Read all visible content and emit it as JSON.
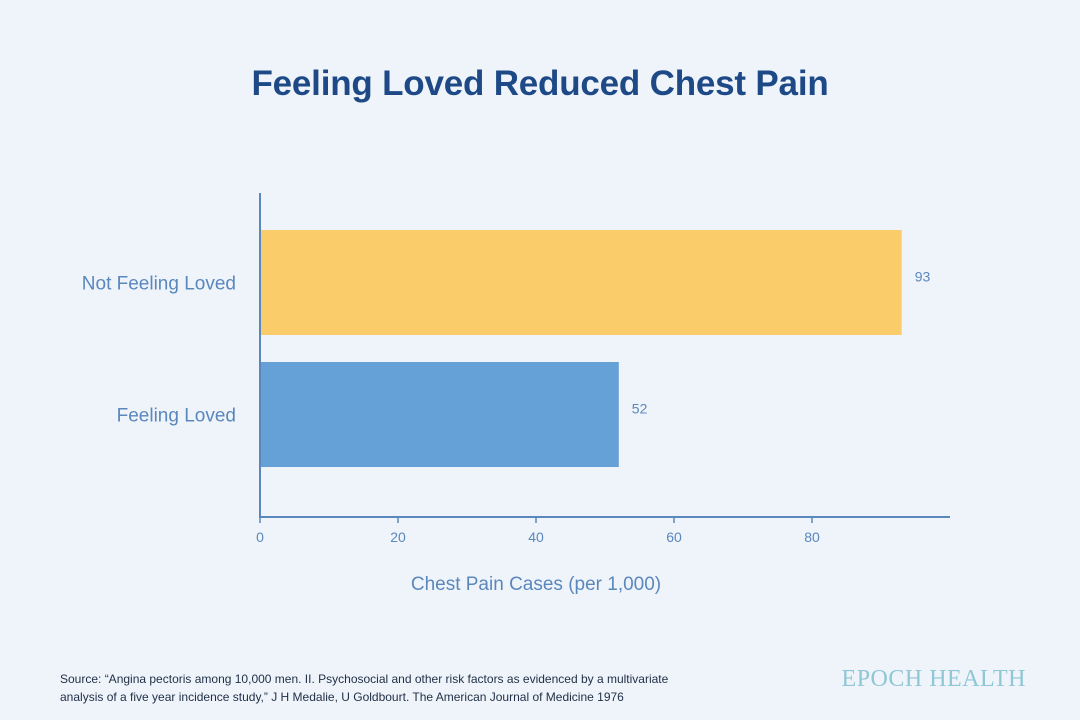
{
  "chart_data": {
    "type": "bar",
    "orientation": "horizontal",
    "title": "Feeling Loved Reduced Chest Pain",
    "categories": [
      "Not Feeling Loved",
      "Feeling Loved"
    ],
    "values": [
      93,
      52
    ],
    "value_labels": [
      "93",
      "52"
    ],
    "colors": [
      "#fbcd6a",
      "#65a1d6"
    ],
    "xlabel": "Chest Pain Cases (per 1,000)",
    "ylabel": "",
    "xlim": [
      0,
      100
    ],
    "xticks": [
      0,
      20,
      40,
      60,
      80
    ],
    "grid": false,
    "legend": "none"
  },
  "footer": {
    "source_line1": "Source: “Angina pectoris among 10,000 men. II. Psychosocial and other risk factors as evidenced by a multivariate",
    "source_line2": "analysis of a five year incidence study,” J H Medalie, U Goldbourt. The American Journal of Medicine 1976",
    "brand": "EPOCH HEALTH"
  },
  "colors": {
    "background": "#eff3fa",
    "title": "#1d4a86",
    "axis": "#5a88bd"
  }
}
